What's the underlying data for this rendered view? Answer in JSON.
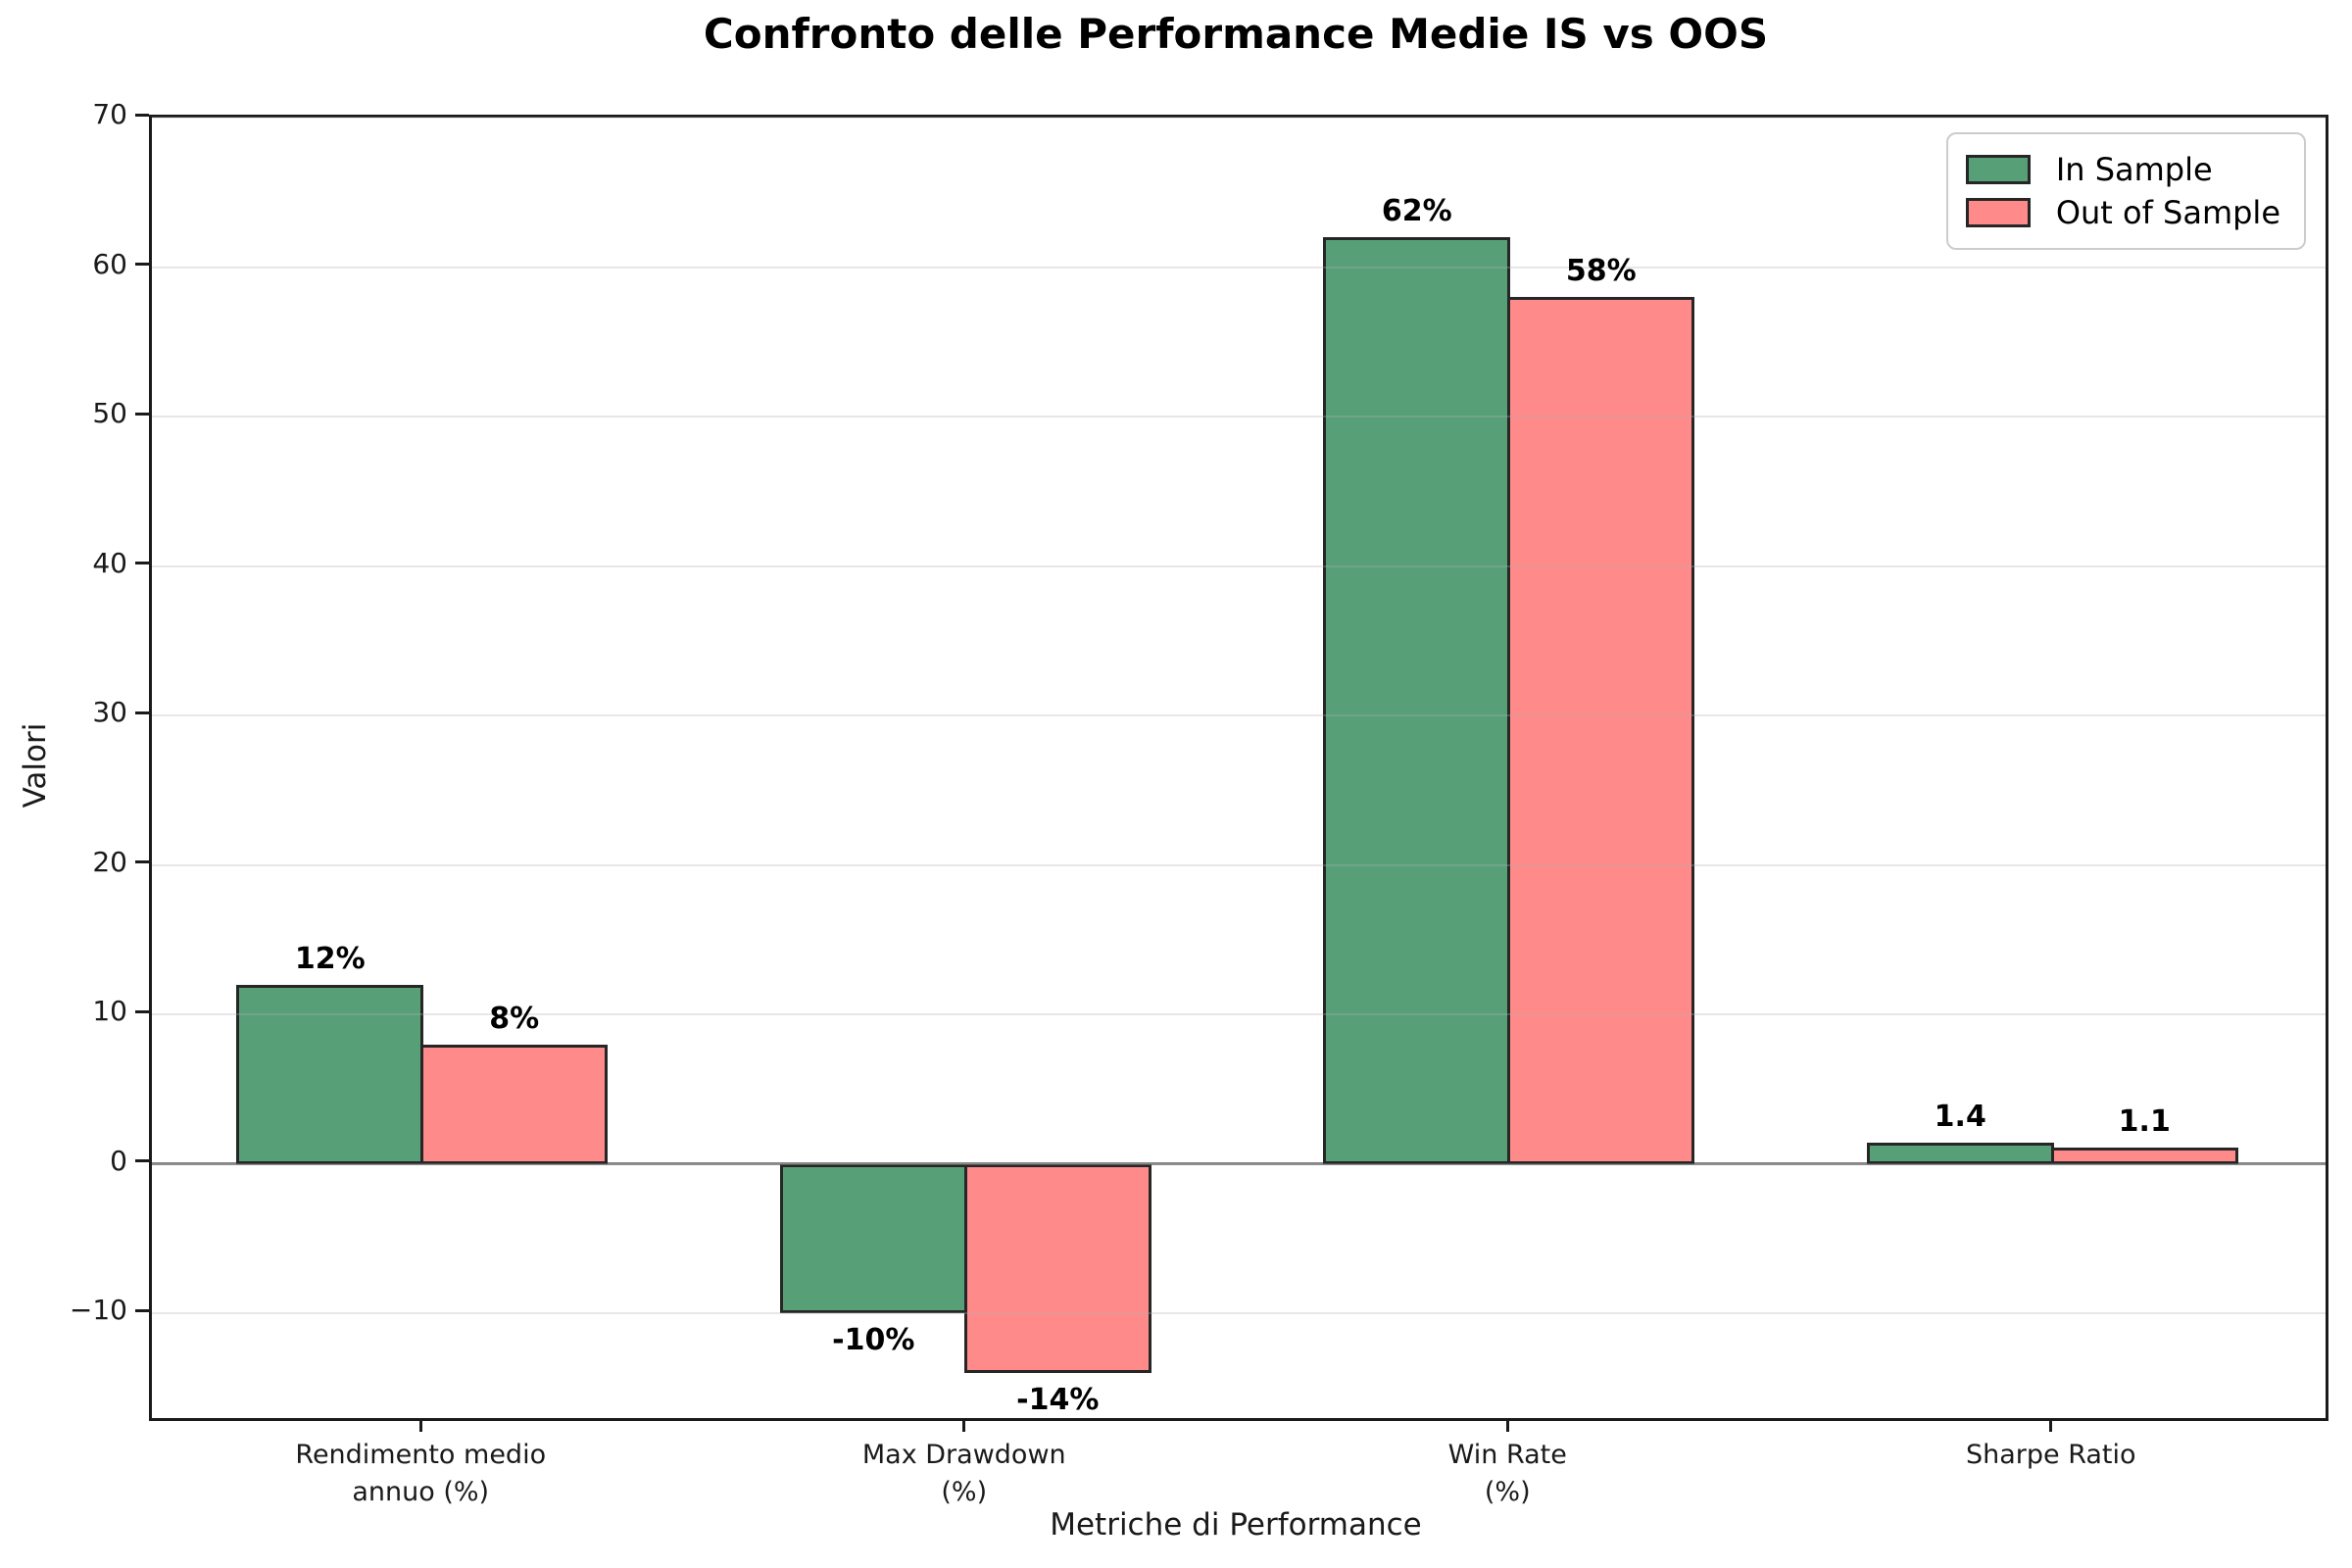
{
  "title": "Confronto delle Performance Medie IS vs OOS",
  "chart_data": {
    "type": "bar",
    "title": "Confronto delle Performance Medie IS vs OOS",
    "xlabel": "Metriche di Performance",
    "ylabel": "Valori",
    "categories": [
      "Rendimento medio\nannuo (%)",
      "Max Drawdown\n(%)",
      "Win Rate\n(%)",
      "Sharpe Ratio"
    ],
    "series": [
      {
        "name": "In Sample",
        "color": "#57a077",
        "values": [
          12,
          -10,
          62,
          1.4
        ],
        "value_labels": [
          "12%",
          "-10%",
          "62%",
          "1.4"
        ]
      },
      {
        "name": "Out of Sample",
        "color": "#ff8a8a",
        "values": [
          8,
          -14,
          58,
          1.1
        ],
        "value_labels": [
          "8%",
          "-14%",
          "58%",
          "1.1"
        ]
      }
    ],
    "ylim": [
      -17,
      70
    ],
    "yticks": [
      -10,
      0,
      10,
      20,
      30,
      40,
      50,
      60,
      70
    ],
    "ytick_labels": [
      "−10",
      "0",
      "10",
      "20",
      "30",
      "40",
      "50",
      "60",
      "70"
    ],
    "grid": true,
    "grid_color": "#b0b0b0",
    "zero_line_color": "#808080",
    "bar_edge_color": "#262626",
    "legend_position": "top-right"
  },
  "legend": {
    "items": [
      {
        "label": "In Sample",
        "color": "#57a077"
      },
      {
        "label": "Out of Sample",
        "color": "#ff8a8a"
      }
    ]
  }
}
